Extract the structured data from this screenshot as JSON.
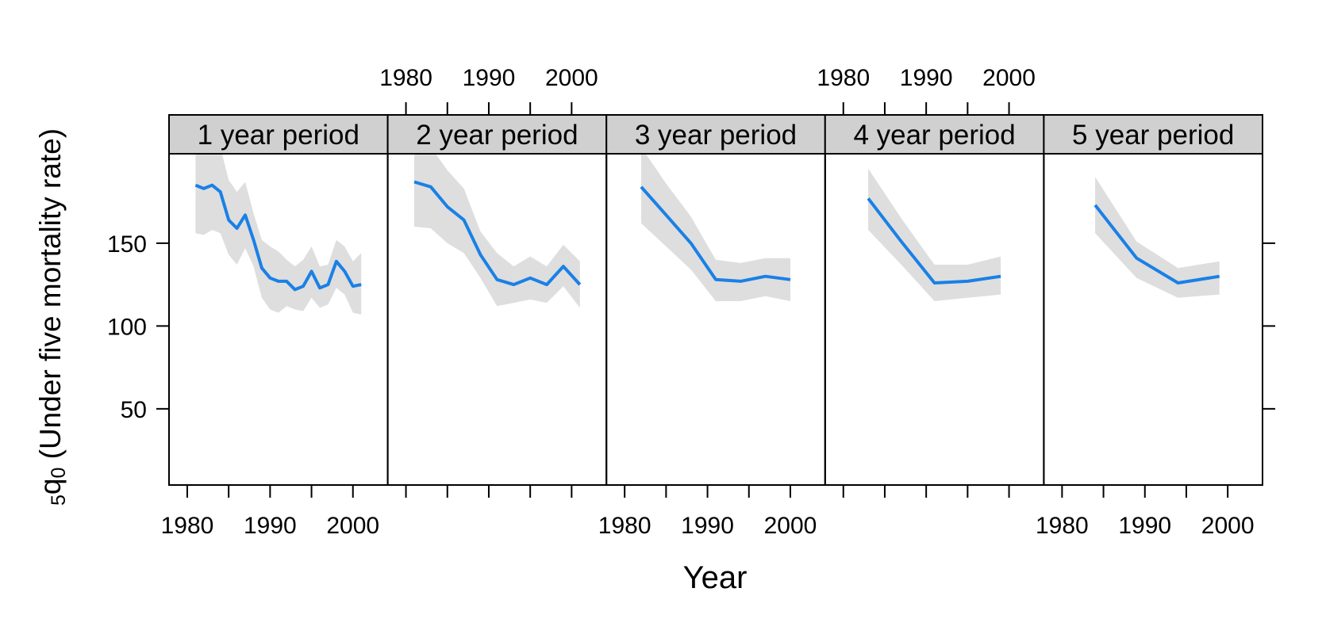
{
  "chart_data": {
    "type": "line",
    "title": "",
    "xlabel": "Year",
    "ylabel_sub": "5",
    "ylabel_q": "q",
    "ylabel_sub2": "0",
    "ylabel_rest": " (Under five mortality rate)",
    "xlim": [
      1977.8,
      2004.2
    ],
    "ylim": [
      4,
      204
    ],
    "x_ticks": [
      1980,
      1985,
      1990,
      1995,
      2000
    ],
    "x_tick_labels": [
      "1980",
      "1990",
      "2000"
    ],
    "y_ticks": [
      50,
      100,
      150
    ],
    "y_tick_labels": [
      "50",
      "100",
      "150"
    ],
    "line_color": "#1a80e6",
    "band_color": "#dedede",
    "strip_color": "#d0d0d0",
    "grid": false,
    "panels": [
      {
        "strip": "1 year period",
        "x": [
          1981,
          1982,
          1983,
          1984,
          1985,
          1986,
          1987,
          1988,
          1989,
          1990,
          1991,
          1992,
          1993,
          1994,
          1995,
          1996,
          1997,
          1998,
          1999,
          2000,
          2001
        ],
        "y": [
          185,
          183,
          185,
          181,
          164,
          159,
          167,
          152,
          135,
          129,
          127,
          127,
          122,
          124,
          133,
          123,
          125,
          139,
          133,
          124,
          125
        ],
        "lower": [
          156,
          155,
          158,
          156,
          143,
          137,
          147,
          136,
          117,
          110,
          108,
          112,
          110,
          109,
          117,
          111,
          113,
          123,
          119,
          108,
          107
        ],
        "upper": [
          212,
          212,
          213,
          208,
          188,
          181,
          187,
          168,
          152,
          148,
          145,
          140,
          136,
          140,
          148,
          136,
          137,
          152,
          148,
          139,
          144
        ]
      },
      {
        "strip": "2 year period",
        "x": [
          1981,
          1983,
          1985,
          1987,
          1989,
          1991,
          1993,
          1995,
          1997,
          1999,
          2001
        ],
        "y": [
          187,
          184,
          172,
          164,
          143,
          128,
          125,
          129,
          125,
          136,
          125
        ],
        "lower": [
          160,
          159,
          150,
          144,
          129,
          112,
          114,
          116,
          114,
          124,
          111
        ],
        "upper": [
          212,
          208,
          194,
          183,
          157,
          144,
          136,
          142,
          136,
          149,
          139
        ]
      },
      {
        "strip": "3 year period",
        "x": [
          1982,
          1985,
          1988,
          1991,
          1994,
          1997,
          2000
        ],
        "y": [
          184,
          167,
          150,
          128,
          127,
          130,
          128
        ],
        "lower": [
          162,
          148,
          134,
          115,
          115,
          118,
          115
        ],
        "upper": [
          208,
          186,
          166,
          140,
          138,
          141,
          141
        ]
      },
      {
        "strip": "4 year period",
        "x": [
          1983,
          1987,
          1991,
          1995,
          1999
        ],
        "y": [
          177,
          151,
          126,
          127,
          130
        ],
        "lower": [
          158,
          137,
          115,
          117,
          119
        ],
        "upper": [
          195,
          165,
          137,
          137,
          142
        ]
      },
      {
        "strip": "5 year period",
        "x": [
          1984,
          1989,
          1994,
          1999
        ],
        "y": [
          173,
          141,
          126,
          130
        ],
        "lower": [
          156,
          129,
          117,
          119
        ],
        "upper": [
          190,
          151,
          135,
          139
        ]
      }
    ]
  }
}
